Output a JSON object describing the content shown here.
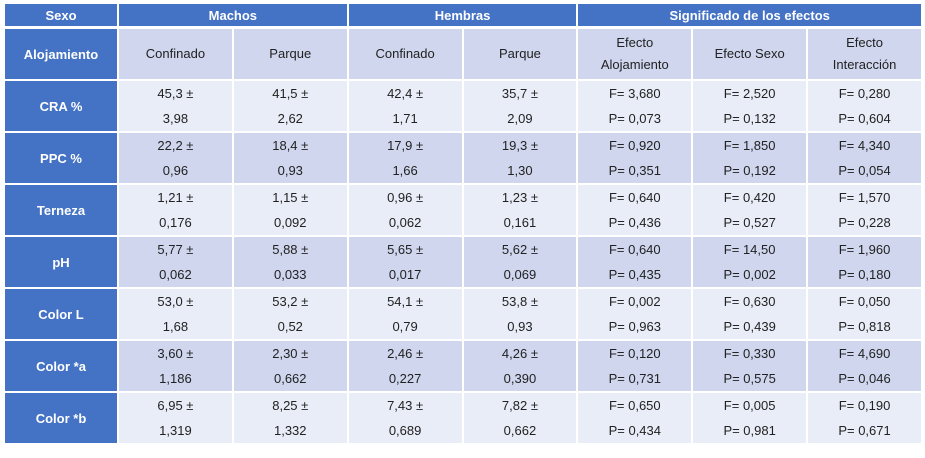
{
  "table": {
    "group_header": {
      "sexo": "Sexo",
      "machos": "Machos",
      "hembras": "Hembras",
      "significado": "Significado de los efectos"
    },
    "sub_header": {
      "alojamiento": "Alojamiento",
      "cols": [
        {
          "line1": "Confinado",
          "line2": ""
        },
        {
          "line1": "Parque",
          "line2": ""
        },
        {
          "line1": "Confinado",
          "line2": ""
        },
        {
          "line1": "Parque",
          "line2": ""
        },
        {
          "line1": "Efecto",
          "line2": "Alojamiento"
        },
        {
          "line1": "Efecto Sexo",
          "line2": ""
        },
        {
          "line1": "Efecto",
          "line2": "Interacción"
        }
      ]
    },
    "rows": [
      {
        "label": "CRA %",
        "cells": [
          [
            "45,3 ±",
            "3,98"
          ],
          [
            "41,5 ±",
            "2,62"
          ],
          [
            "42,4 ±",
            "1,71"
          ],
          [
            "35,7 ±",
            "2,09"
          ],
          [
            "F= 3,680",
            "P= 0,073"
          ],
          [
            "F= 2,520",
            "P= 0,132"
          ],
          [
            "F= 0,280",
            "P= 0,604"
          ]
        ]
      },
      {
        "label": "PPC %",
        "cells": [
          [
            "22,2 ±",
            "0,96"
          ],
          [
            "18,4 ±",
            "0,93"
          ],
          [
            "17,9 ±",
            "1,66"
          ],
          [
            "19,3 ±",
            "1,30"
          ],
          [
            "F= 0,920",
            "P= 0,351"
          ],
          [
            "F= 1,850",
            "P= 0,192"
          ],
          [
            "F= 4,340",
            "P= 0,054"
          ]
        ]
      },
      {
        "label": "Terneza",
        "cells": [
          [
            "1,21 ±",
            "0,176"
          ],
          [
            "1,15 ±",
            "0,092"
          ],
          [
            "0,96 ±",
            "0,062"
          ],
          [
            "1,23 ±",
            "0,161"
          ],
          [
            "F= 0,640",
            "P= 0,436"
          ],
          [
            "F= 0,420",
            "P= 0,527"
          ],
          [
            "F= 1,570",
            "P= 0,228"
          ]
        ]
      },
      {
        "label": "pH",
        "cells": [
          [
            "5,77 ±",
            "0,062"
          ],
          [
            "5,88 ±",
            "0,033"
          ],
          [
            "5,65 ±",
            "0,017"
          ],
          [
            "5,62 ±",
            "0,069"
          ],
          [
            "F= 0,640",
            "P= 0,435"
          ],
          [
            "F= 14,50",
            "P= 0,002"
          ],
          [
            "F= 1,960",
            "P= 0,180"
          ]
        ]
      },
      {
        "label": "Color L",
        "cells": [
          [
            "53,0 ±",
            "1,68"
          ],
          [
            "53,2 ±",
            "0,52"
          ],
          [
            "54,1 ±",
            "0,79"
          ],
          [
            "53,8 ±",
            "0,93"
          ],
          [
            "F= 0,002",
            "P= 0,963"
          ],
          [
            "F= 0,630",
            "P= 0,439"
          ],
          [
            "F= 0,050",
            "P= 0,818"
          ]
        ]
      },
      {
        "label": "Color *a",
        "cells": [
          [
            "3,60 ±",
            "1,186"
          ],
          [
            "2,30 ±",
            "0,662"
          ],
          [
            "2,46 ±",
            "0,227"
          ],
          [
            "4,26 ±",
            "0,390"
          ],
          [
            "F= 0,120",
            "P= 0,731"
          ],
          [
            "F= 0,330",
            "P= 0,575"
          ],
          [
            "F= 4,690",
            "P= 0,046"
          ]
        ]
      },
      {
        "label": "Color *b",
        "cells": [
          [
            "6,95 ±",
            "1,319"
          ],
          [
            "8,25 ±",
            "1,332"
          ],
          [
            "7,43 ±",
            "0,689"
          ],
          [
            "7,82 ±",
            "0,662"
          ],
          [
            "F= 0,650",
            "P= 0,434"
          ],
          [
            "F= 0,005",
            "P= 0,981"
          ],
          [
            "F= 0,190",
            "P= 0,671"
          ]
        ]
      }
    ]
  },
  "colors": {
    "header_blue": "#4472c4",
    "band_dark": "#cfd6ee",
    "band_light": "#e9edf7"
  }
}
